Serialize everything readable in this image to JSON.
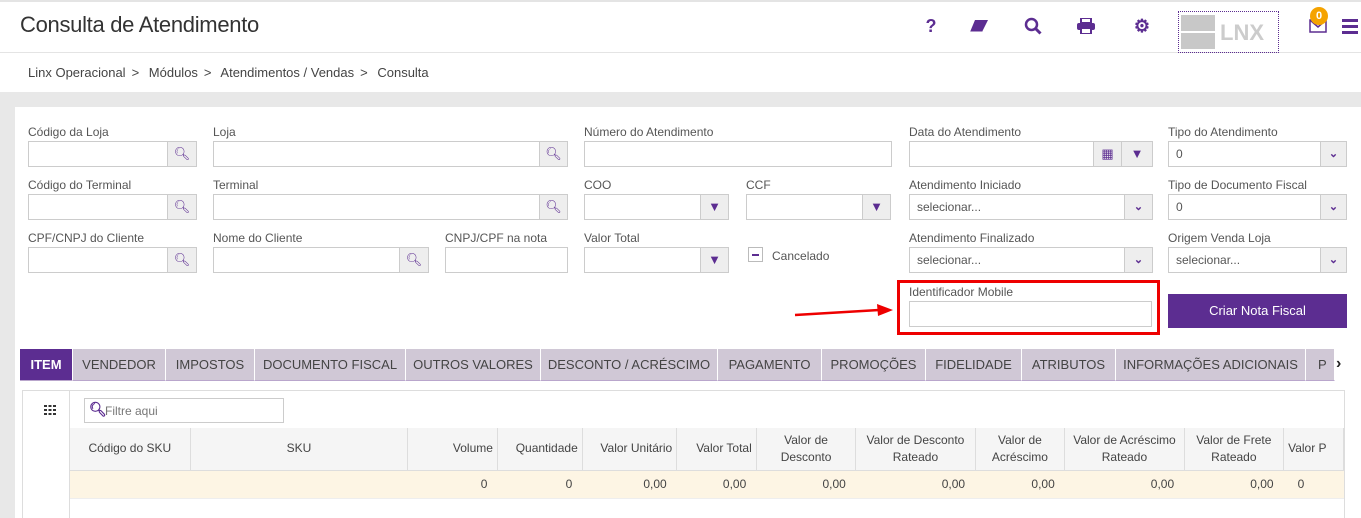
{
  "header": {
    "title": "Consulta de Atendimento",
    "logo_text": "LNX",
    "notification_count": "0",
    "icons": [
      "help-icon",
      "eraser-icon",
      "search-icon",
      "print-icon",
      "gear-icon",
      "mail-icon",
      "menu-icon"
    ]
  },
  "breadcrumb": [
    "Linx Operacional",
    "Módulos",
    "Atendimentos / Vendas",
    "Consulta"
  ],
  "breadcrumb_sep": ">",
  "form": {
    "codigo_loja": "Código da Loja",
    "loja": "Loja",
    "numero_atendimento": "Número do Atendimento",
    "data_atendimento": "Data do Atendimento",
    "tipo_atendimento": "Tipo do Atendimento",
    "tipo_atendimento_value": "0",
    "codigo_terminal": "Código do Terminal",
    "terminal": "Terminal",
    "coo": "COO",
    "ccf": "CCF",
    "atendimento_iniciado": "Atendimento Iniciado",
    "atendimento_iniciado_value": "selecionar...",
    "tipo_doc_fiscal": "Tipo de Documento Fiscal",
    "tipo_doc_fiscal_value": "0",
    "cpf_cliente": "CPF/CNPJ do Cliente",
    "nome_cliente": "Nome do Cliente",
    "cnpj_nota": "CNPJ/CPF na nota",
    "valor_total": "Valor Total",
    "cancelado": "Cancelado",
    "atendimento_finalizado": "Atendimento Finalizado",
    "atendimento_finalizado_value": "selecionar...",
    "origem_venda": "Origem Venda Loja",
    "origem_venda_value": "selecionar...",
    "identificador_mobile": "Identificador Mobile",
    "criar_nota": "Criar Nota Fiscal"
  },
  "annotation_color": "#e00000",
  "accent": "#5c2d91",
  "tabs": [
    "ITEM",
    "VENDEDOR",
    "IMPOSTOS",
    "DOCUMENTO FISCAL",
    "OUTROS VALORES",
    "DESCONTO / ACRÉSCIMO",
    "PAGAMENTO",
    "PROMOÇÕES",
    "FIDELIDADE",
    "ATRIBUTOS",
    "INFORMAÇÕES ADICIONAIS",
    "P"
  ],
  "grid": {
    "filter_placeholder": "Filtre aqui",
    "columns": [
      "Código do SKU",
      "SKU",
      "Volume",
      "Quantidade",
      "Valor Unitário",
      "Valor Total",
      "Valor de Desconto",
      "Valor de Desconto Rateado",
      "Valor de Acréscimo",
      "Valor de Acréscimo Rateado",
      "Valor de Frete Rateado",
      "Valor P"
    ],
    "row": [
      "",
      "",
      "0",
      "0",
      "0,00",
      "0,00",
      "0,00",
      "0,00",
      "0,00",
      "0,00",
      "0,00",
      "0"
    ]
  }
}
